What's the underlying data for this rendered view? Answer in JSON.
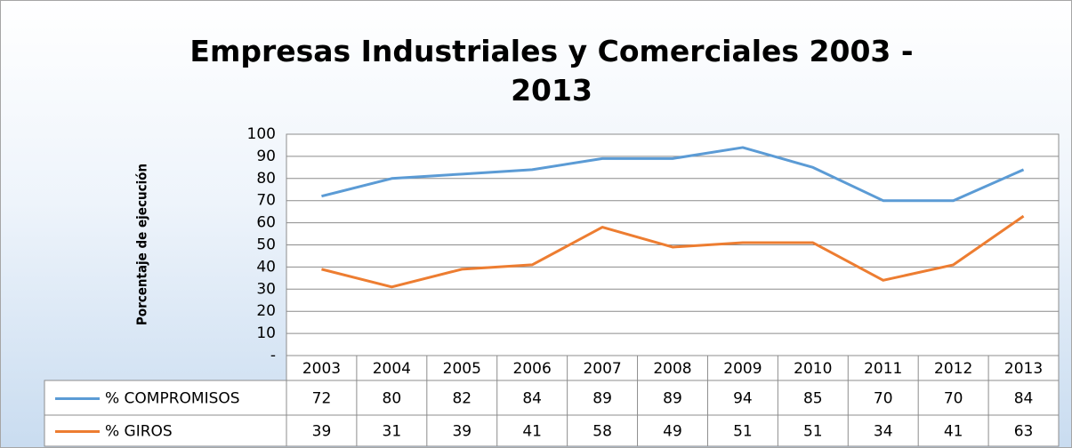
{
  "chart_data": {
    "type": "line",
    "title": "Empresas Industriales y Comerciales  2003 - 2013",
    "ylabel": "Porcentaje de ejecución",
    "categories": [
      "2003",
      "2004",
      "2005",
      "2006",
      "2007",
      "2008",
      "2009",
      "2010",
      "2011",
      "2012",
      "2013"
    ],
    "series": [
      {
        "name": "% COMPROMISOS",
        "color": "#5b9bd5",
        "values": [
          72,
          80,
          82,
          84,
          89,
          89,
          94,
          85,
          70,
          70,
          84
        ]
      },
      {
        "name": "% GIROS",
        "color": "#ed7d31",
        "values": [
          39,
          31,
          39,
          41,
          58,
          49,
          51,
          51,
          34,
          41,
          63
        ]
      }
    ],
    "ylim": [
      0,
      100
    ],
    "yticks": [
      {
        "value": 0,
        "label": "-"
      },
      10,
      20,
      30,
      40,
      50,
      60,
      70,
      80,
      90,
      100
    ],
    "grid": true,
    "data_table": true
  }
}
